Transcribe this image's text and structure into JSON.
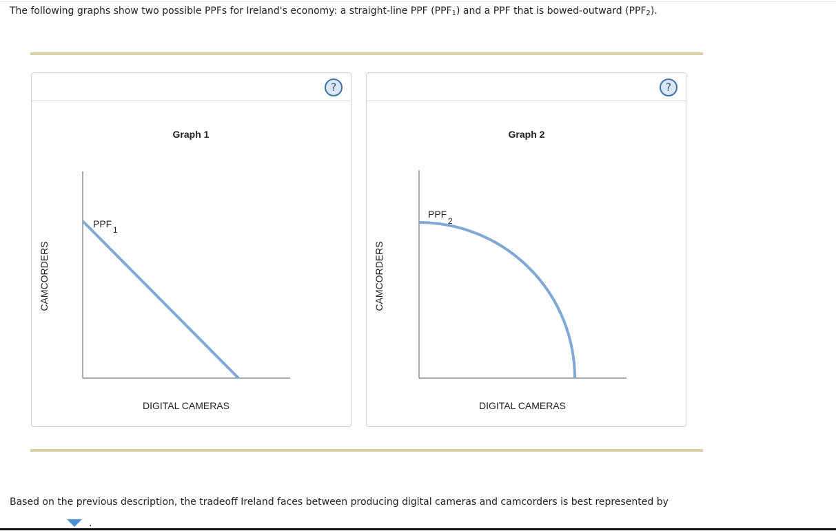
{
  "intro": [
    "The following graphs show two possible PPFs for Ireland's economy: a straight-line PPF (PPF",
    "1",
    ") and a PPF that is bowed-outward (PPF",
    "2",
    ")."
  ],
  "graphs": [
    {
      "help": "?",
      "title": "Graph 1",
      "y_label": "CAMCORDERS",
      "x_label": "DIGITAL CAMERAS",
      "curve_label": "PPF",
      "curve_sub": "1"
    },
    {
      "help": "?",
      "title": "Graph 2",
      "y_label": "CAMCORDERS",
      "x_label": "DIGITAL CAMERAS",
      "curve_label": "PPF",
      "curve_sub": "2"
    }
  ],
  "question": "Based on the previous description, the tradeoff Ireland faces between producing digital cameras and camcorders is best represented by",
  "after_dropdown": "."
}
